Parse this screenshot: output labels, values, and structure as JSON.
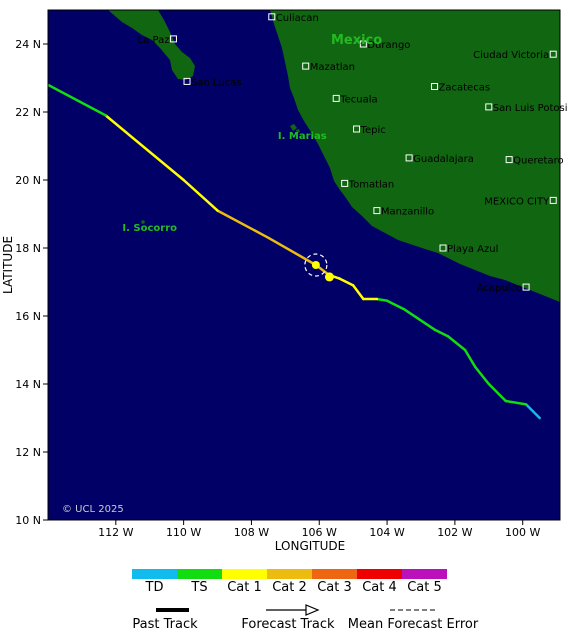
{
  "map": {
    "lon_range": [
      -114,
      -98.9
    ],
    "lat_range": [
      10,
      25
    ],
    "ocean_color": "#000066",
    "land_color": "#116611",
    "x_ticks": [
      -112,
      -110,
      -108,
      -106,
      -104,
      -102,
      -100
    ],
    "x_tick_labels": [
      "112 W",
      "110 W",
      "108 W",
      "106 W",
      "104 W",
      "102 W",
      "100 W"
    ],
    "y_ticks": [
      10,
      12,
      14,
      16,
      18,
      20,
      22,
      24
    ],
    "y_tick_labels": [
      "10 N",
      "12 N",
      "14 N",
      "16 N",
      "18 N",
      "20 N",
      "22 N",
      "24 N"
    ],
    "xlabel": "LONGITUDE",
    "ylabel": "LATITUDE",
    "copyright": "© UCL 2025"
  },
  "regions": [
    {
      "name": "Mexico",
      "lon": -104.9,
      "lat": 24.0,
      "size": 13
    },
    {
      "name": "I. Marias",
      "lon": -106.5,
      "lat": 21.2,
      "size": 10
    },
    {
      "name": "I. Socorro",
      "lon": -111.0,
      "lat": 18.5,
      "size": 10
    }
  ],
  "cities": [
    {
      "name": "Culiacan",
      "lon": -107.4,
      "lat": 24.8,
      "label_side": "right"
    },
    {
      "name": "La Paz",
      "lon": -110.3,
      "lat": 24.15,
      "label_side": "left"
    },
    {
      "name": "Durango",
      "lon": -104.7,
      "lat": 24.0,
      "label_side": "right"
    },
    {
      "name": "Ciudad Victoria",
      "lon": -99.1,
      "lat": 23.7,
      "label_side": "left"
    },
    {
      "name": "Mazatlan",
      "lon": -106.4,
      "lat": 23.35,
      "label_side": "right"
    },
    {
      "name": "San Lucas",
      "lon": -109.9,
      "lat": 22.9,
      "label_side": "right"
    },
    {
      "name": "Zacatecas",
      "lon": -102.6,
      "lat": 22.75,
      "label_side": "right"
    },
    {
      "name": "Tecuala",
      "lon": -105.5,
      "lat": 22.4,
      "label_side": "right"
    },
    {
      "name": "San Luis Potosi",
      "lon": -101.0,
      "lat": 22.15,
      "label_side": "right"
    },
    {
      "name": "Tepic",
      "lon": -104.9,
      "lat": 21.5,
      "label_side": "right"
    },
    {
      "name": "Guadalajara",
      "lon": -103.35,
      "lat": 20.65,
      "label_side": "right"
    },
    {
      "name": "Queretaro",
      "lon": -100.4,
      "lat": 20.6,
      "label_side": "right"
    },
    {
      "name": "Tomatlan",
      "lon": -105.25,
      "lat": 19.9,
      "label_side": "right"
    },
    {
      "name": "MEXICO CITY",
      "lon": -99.1,
      "lat": 19.4,
      "label_side": "left"
    },
    {
      "name": "Manzanillo",
      "lon": -104.3,
      "lat": 19.1,
      "label_side": "right"
    },
    {
      "name": "Playa Azul",
      "lon": -102.35,
      "lat": 18.0,
      "label_side": "right"
    },
    {
      "name": "Acapulco",
      "lon": -99.9,
      "lat": 16.85,
      "label_side": "left"
    }
  ],
  "storm": {
    "track": [
      {
        "lon": -99.5,
        "lat": 13.0,
        "cat": "TD"
      },
      {
        "lon": -99.9,
        "lat": 13.4,
        "cat": "TD"
      },
      {
        "lon": -100.5,
        "lat": 13.5,
        "cat": "TS"
      },
      {
        "lon": -101.0,
        "lat": 14.0,
        "cat": "TS"
      },
      {
        "lon": -101.4,
        "lat": 14.5,
        "cat": "TS"
      },
      {
        "lon": -101.7,
        "lat": 15.0,
        "cat": "TS"
      },
      {
        "lon": -102.2,
        "lat": 15.4,
        "cat": "TS"
      },
      {
        "lon": -102.6,
        "lat": 15.6,
        "cat": "TS"
      },
      {
        "lon": -103.5,
        "lat": 16.2,
        "cat": "TS"
      },
      {
        "lon": -104.0,
        "lat": 16.45,
        "cat": "TS"
      },
      {
        "lon": -104.3,
        "lat": 16.5,
        "cat": "TS"
      },
      {
        "lon": -104.7,
        "lat": 16.5,
        "cat": "Cat 1"
      },
      {
        "lon": -105.0,
        "lat": 16.9,
        "cat": "Cat 1"
      },
      {
        "lon": -105.4,
        "lat": 17.1,
        "cat": "Cat 1"
      },
      {
        "lon": -105.7,
        "lat": 17.2,
        "cat": "Cat 1"
      },
      {
        "lon": -106.1,
        "lat": 17.5,
        "cat": "Cat 2"
      },
      {
        "lon": -107.5,
        "lat": 18.3,
        "cat": "Cat 2"
      },
      {
        "lon": -109.0,
        "lat": 19.1,
        "cat": "Cat 2"
      },
      {
        "lon": -110.0,
        "lat": 20.0,
        "cat": "Cat 1"
      },
      {
        "lon": -112.3,
        "lat": 21.9,
        "cat": "Cat 1"
      },
      {
        "lon": -114.0,
        "lat": 22.8,
        "cat": "TS"
      }
    ],
    "current_position": {
      "lon": -106.1,
      "lat": 17.5
    },
    "previous_position": {
      "lon": -105.7,
      "lat": 17.15
    }
  },
  "legend": {
    "categories": [
      {
        "label": "TD",
        "color": "#11bbee"
      },
      {
        "label": "TS",
        "color": "#11dd11"
      },
      {
        "label": "Cat 1",
        "color": "#ffff00"
      },
      {
        "label": "Cat 2",
        "color": "#eebb11"
      },
      {
        "label": "Cat 3",
        "color": "#ee6611"
      },
      {
        "label": "Cat 4",
        "color": "#ee0000"
      },
      {
        "label": "Cat 5",
        "color": "#bb11bb"
      }
    ],
    "past_track": "Past Track",
    "forecast_track": "Forecast Track",
    "mean_error": "Mean Forecast Error"
  }
}
